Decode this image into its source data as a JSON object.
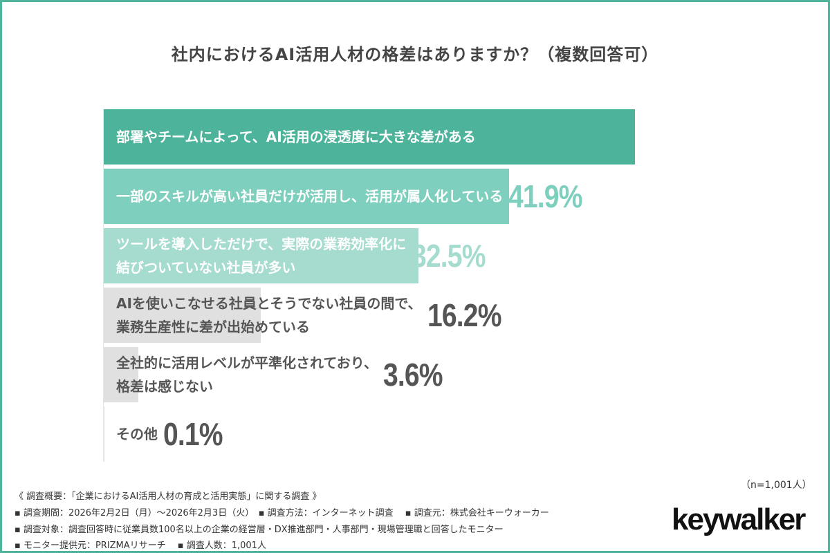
{
  "chart_data": {
    "type": "bar",
    "orientation": "horizontal",
    "title": "社内におけるAI活用人材の格差はありますか？（複数回答可）",
    "unit": "%",
    "xlim": [
      0,
      60
    ],
    "grid": false,
    "categories": [
      [
        "部署やチームによって、AI活用の浸透度に大きな差がある"
      ],
      [
        "一部のスキルが高い社員だけが活用し、活用が属人化している"
      ],
      [
        "ツールを導入しただけで、実際の業務効率化に",
        "結びついていない社員が多い"
      ],
      [
        "AIを使いこなせる社員とそうでない社員の間で、",
        "業務生産性に差が出始めている"
      ],
      [
        "全社的に活用レベルが平準化されており、",
        "格差は感じない"
      ],
      [
        "その他"
      ]
    ],
    "values": [
      54.9,
      41.9,
      32.5,
      16.2,
      3.6,
      0.1
    ],
    "colors": [
      "#4db39b",
      "#7ecfbe",
      "#a6dccf",
      "#e0e0e0",
      "#e0e0e0",
      "#e0e0e0"
    ],
    "label_colors": [
      "#ffffff",
      "#ffffff",
      "#ffffff",
      "#555555",
      "#555555",
      "#555555"
    ],
    "value_colors": [
      "#4db39b",
      "#7ecfbe",
      "#a6dccf",
      "#555555",
      "#555555",
      "#555555"
    ]
  },
  "footer": {
    "summary": "《 調査概要：「企業におけるAI活用人材の育成と活用実態」に関する調査 》",
    "line1": "▪ 調査期間：2026年2月2日（月）〜2026年2月3日（火）　▪ 調査方法：インターネット調査　 ▪ 調査元：株式会社キーウォーカー",
    "line2": "▪ 調査対象：調査回答時に従業員数100名以上の企業の経営層・DX推進部門・人事部門・現場管理職と回答したモニター",
    "line3": "▪ モニター提供元：PRIZMAリサーチ　 ▪ 調査人数：1,001人",
    "sample": "（n=1,001人）",
    "logo": "keywalker"
  },
  "accent_color": "#4db39b"
}
